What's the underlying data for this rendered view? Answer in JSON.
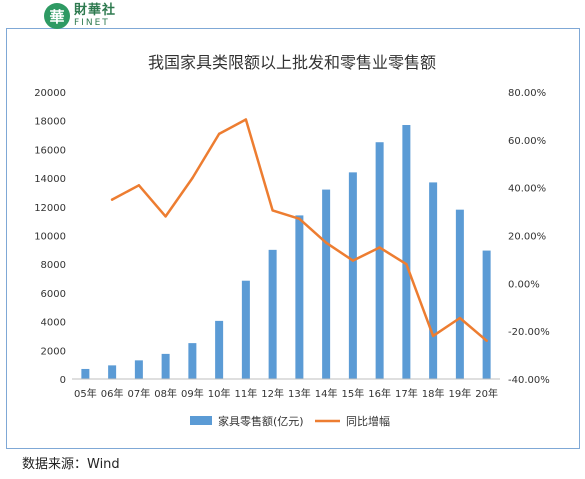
{
  "brand": {
    "mark": "華",
    "name_cn": "財華社",
    "name_en": "FINET"
  },
  "source": "数据来源：Wind",
  "colors": {
    "bar": "#5b9bd5",
    "line": "#ed7d31",
    "axis_text": "#333333",
    "grid": "#d9d9d9"
  },
  "chart_data": {
    "type": "bar",
    "title": "我国家具类限额以上批发和零售业零售额",
    "categories": [
      "05年",
      "06年",
      "07年",
      "08年",
      "09年",
      "10年",
      "11年",
      "12年",
      "13年",
      "14年",
      "15年",
      "16年",
      "17年",
      "18年",
      "19年",
      "20年"
    ],
    "series": [
      {
        "name": "家具零售额(亿元)",
        "type": "bar",
        "axis": "left",
        "values": [
          700,
          950,
          1300,
          1750,
          2500,
          4050,
          6850,
          9000,
          11400,
          13200,
          14400,
          16500,
          17700,
          13700,
          11800,
          8950
        ]
      },
      {
        "name": "同比增幅",
        "type": "line",
        "axis": "right",
        "values": [
          null,
          35.0,
          41.0,
          28.0,
          44.0,
          62.5,
          68.5,
          30.5,
          27.0,
          17.0,
          9.5,
          15.0,
          8.0,
          -22.0,
          -14.5,
          -24.0
        ]
      }
    ],
    "ylim_left": [
      0,
      20000
    ],
    "yticks_left": [
      "0",
      "2000",
      "4000",
      "6000",
      "8000",
      "10000",
      "12000",
      "14000",
      "16000",
      "18000",
      "20000"
    ],
    "ylim_right": [
      -40,
      80
    ],
    "yticks_right": [
      "-40.00%",
      "-20.00%",
      "0.00%",
      "20.00%",
      "40.00%",
      "60.00%",
      "80.00%"
    ],
    "grid": false,
    "legend_position": "bottom"
  }
}
